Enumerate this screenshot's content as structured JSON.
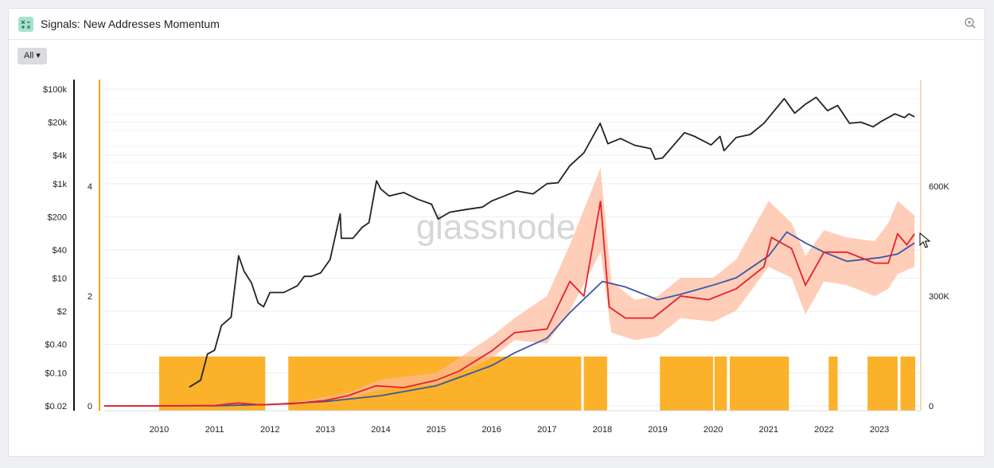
{
  "header": {
    "title": "Signals: New Addresses Momentum",
    "range_button": "All ▾",
    "icons": {
      "title_icon": "signals-icon",
      "zoom_icon": "zoom-in-icon"
    }
  },
  "watermark": "glassnode",
  "colors": {
    "price": "#222222",
    "short_ma": "#e8202a",
    "long_ma": "#3b57a8",
    "raw_band": "#ffb99a",
    "signal": "#fbb12a",
    "left_axis_accent": "#f0a500",
    "right_axis_accent": "#ffd6b8"
  },
  "chart_data": {
    "type": "line",
    "title": "Signals: New Addresses Momentum",
    "x_ticks": [
      "2010",
      "2011",
      "2012",
      "2013",
      "2014",
      "2015",
      "2016",
      "2017",
      "2018",
      "2019",
      "2020",
      "2021",
      "2022",
      "2023"
    ],
    "xlim": [
      "2009-01-03",
      "2023-09-01"
    ],
    "axes": {
      "price": {
        "scale": "log",
        "ticks": [
          "$0.02",
          "$0.10",
          "$0.40",
          "$2",
          "$10",
          "$40",
          "$200",
          "$1k",
          "$4k",
          "$20k",
          "$100k"
        ],
        "tick_values": [
          0.02,
          0.1,
          0.4,
          2,
          10,
          40,
          200,
          1000,
          4000,
          20000,
          100000
        ]
      },
      "signal": {
        "ticks": [
          "0",
          "2",
          "4"
        ],
        "tick_values": [
          0,
          2,
          4
        ],
        "ylim": [
          0,
          6
        ]
      },
      "addresses": {
        "ticks": [
          "0",
          "300K",
          "600K"
        ],
        "tick_values": [
          0,
          300000,
          600000
        ],
        "ylim": [
          0,
          900000
        ]
      }
    },
    "grid": true,
    "signal_periods": [
      [
        "2010-01-01",
        "2011-12-01"
      ],
      [
        "2012-05-01",
        "2017-08-15"
      ],
      [
        "2017-09-01",
        "2018-02-01"
      ],
      [
        "2019-01-15",
        "2020-01-01"
      ],
      [
        "2020-01-10",
        "2020-04-01"
      ],
      [
        "2020-04-20",
        "2021-05-15"
      ],
      [
        "2022-02-01",
        "2022-04-01"
      ],
      [
        "2022-10-15",
        "2023-05-01"
      ],
      [
        "2023-05-20",
        "2023-08-25"
      ]
    ],
    "series": [
      {
        "name": "",
        "axis": "price",
        "points": [
          [
            "2010-07-18",
            0.05
          ],
          [
            "2010-10-01",
            0.07
          ],
          [
            "2010-11-15",
            0.25
          ],
          [
            "2011-01-01",
            0.3
          ],
          [
            "2011-02-15",
            1.0
          ],
          [
            "2011-04-20",
            1.5
          ],
          [
            "2011-06-08",
            30
          ],
          [
            "2011-07-15",
            14
          ],
          [
            "2011-09-01",
            8
          ],
          [
            "2011-10-15",
            3
          ],
          [
            "2011-11-20",
            2.5
          ],
          [
            "2012-01-01",
            5
          ],
          [
            "2012-04-01",
            5
          ],
          [
            "2012-07-01",
            7
          ],
          [
            "2012-08-15",
            11
          ],
          [
            "2012-10-01",
            11
          ],
          [
            "2012-12-01",
            13
          ],
          [
            "2013-02-01",
            25
          ],
          [
            "2013-04-09",
            230
          ],
          [
            "2013-04-16",
            70
          ],
          [
            "2013-07-01",
            70
          ],
          [
            "2013-09-01",
            120
          ],
          [
            "2013-10-15",
            150
          ],
          [
            "2013-12-04",
            1150
          ],
          [
            "2014-01-01",
            770
          ],
          [
            "2014-02-25",
            550
          ],
          [
            "2014-06-01",
            650
          ],
          [
            "2014-09-01",
            470
          ],
          [
            "2014-12-01",
            370
          ],
          [
            "2015-01-14",
            180
          ],
          [
            "2015-04-01",
            250
          ],
          [
            "2015-07-01",
            280
          ],
          [
            "2015-11-01",
            320
          ],
          [
            "2016-01-01",
            430
          ],
          [
            "2016-06-15",
            700
          ],
          [
            "2016-10-01",
            610
          ],
          [
            "2017-01-01",
            1000
          ],
          [
            "2017-03-15",
            1050
          ],
          [
            "2017-06-01",
            2400
          ],
          [
            "2017-09-01",
            4500
          ],
          [
            "2017-12-17",
            19000
          ],
          [
            "2018-02-06",
            7000
          ],
          [
            "2018-05-01",
            9000
          ],
          [
            "2018-08-01",
            6500
          ],
          [
            "2018-11-15",
            5500
          ],
          [
            "2018-12-15",
            3300
          ],
          [
            "2019-02-01",
            3500
          ],
          [
            "2019-06-26",
            12000
          ],
          [
            "2019-09-01",
            10000
          ],
          [
            "2019-12-18",
            6600
          ],
          [
            "2020-02-15",
            10000
          ],
          [
            "2020-03-13",
            5000
          ],
          [
            "2020-06-01",
            9500
          ],
          [
            "2020-09-01",
            11000
          ],
          [
            "2020-12-01",
            19000
          ],
          [
            "2021-04-14",
            63000
          ],
          [
            "2021-06-22",
            31000
          ],
          [
            "2021-09-01",
            48000
          ],
          [
            "2021-11-10",
            67000
          ],
          [
            "2022-01-24",
            35000
          ],
          [
            "2022-04-01",
            45000
          ],
          [
            "2022-06-18",
            19000
          ],
          [
            "2022-09-01",
            20000
          ],
          [
            "2022-11-21",
            16000
          ],
          [
            "2023-01-15",
            21000
          ],
          [
            "2023-04-14",
            30000
          ],
          [
            "2023-06-15",
            25000
          ],
          [
            "2023-07-15",
            30000
          ],
          [
            "2023-08-20",
            26000
          ]
        ]
      },
      {
        "name": "",
        "axis": "addresses",
        "points": [
          [
            "2009-01-03",
            0
          ],
          [
            "2010-01-01",
            0
          ],
          [
            "2011-01-01",
            1000
          ],
          [
            "2011-06-01",
            8000
          ],
          [
            "2011-11-01",
            3000
          ],
          [
            "2012-06-01",
            6000
          ],
          [
            "2013-01-01",
            15000
          ],
          [
            "2013-06-01",
            28000
          ],
          [
            "2013-12-01",
            55000
          ],
          [
            "2014-06-01",
            50000
          ],
          [
            "2015-01-01",
            70000
          ],
          [
            "2015-06-01",
            95000
          ],
          [
            "2016-01-01",
            150000
          ],
          [
            "2016-06-01",
            200000
          ],
          [
            "2017-01-01",
            210000
          ],
          [
            "2017-06-01",
            340000
          ],
          [
            "2017-09-01",
            300000
          ],
          [
            "2017-12-20",
            560000
          ],
          [
            "2018-02-15",
            270000
          ],
          [
            "2018-06-01",
            240000
          ],
          [
            "2018-12-01",
            240000
          ],
          [
            "2019-06-01",
            300000
          ],
          [
            "2019-12-01",
            290000
          ],
          [
            "2020-06-01",
            320000
          ],
          [
            "2020-12-01",
            380000
          ],
          [
            "2021-01-20",
            460000
          ],
          [
            "2021-06-01",
            430000
          ],
          [
            "2021-09-01",
            330000
          ],
          [
            "2022-01-01",
            420000
          ],
          [
            "2022-06-01",
            420000
          ],
          [
            "2022-12-01",
            390000
          ],
          [
            "2023-03-01",
            390000
          ],
          [
            "2023-05-01",
            470000
          ],
          [
            "2023-07-01",
            440000
          ],
          [
            "2023-08-20",
            470000
          ]
        ]
      },
      {
        "name": "",
        "axis": "addresses",
        "points": [
          [
            "2009-01-03",
            0
          ],
          [
            "2011-01-01",
            500
          ],
          [
            "2012-01-01",
            4000
          ],
          [
            "2013-01-01",
            12000
          ],
          [
            "2014-01-01",
            28000
          ],
          [
            "2015-01-01",
            55000
          ],
          [
            "2016-01-01",
            110000
          ],
          [
            "2016-06-01",
            145000
          ],
          [
            "2017-01-01",
            185000
          ],
          [
            "2017-06-01",
            255000
          ],
          [
            "2018-01-01",
            340000
          ],
          [
            "2018-06-01",
            325000
          ],
          [
            "2019-01-01",
            290000
          ],
          [
            "2019-06-01",
            305000
          ],
          [
            "2020-01-01",
            330000
          ],
          [
            "2020-06-01",
            350000
          ],
          [
            "2021-01-01",
            410000
          ],
          [
            "2021-05-01",
            475000
          ],
          [
            "2021-09-01",
            445000
          ],
          [
            "2022-01-01",
            420000
          ],
          [
            "2022-06-01",
            395000
          ],
          [
            "2023-01-01",
            405000
          ],
          [
            "2023-05-01",
            415000
          ],
          [
            "2023-08-20",
            445000
          ]
        ]
      },
      {
        "name": "",
        "axis": "addresses",
        "type": "area-band",
        "points": [
          [
            "2012-06-01",
            5000,
            9000
          ],
          [
            "2013-06-01",
            22000,
            36000
          ],
          [
            "2014-01-01",
            45000,
            72000
          ],
          [
            "2015-01-01",
            60000,
            90000
          ],
          [
            "2016-01-01",
            130000,
            190000
          ],
          [
            "2016-06-01",
            180000,
            240000
          ],
          [
            "2017-01-01",
            170000,
            300000
          ],
          [
            "2017-06-01",
            260000,
            440000
          ],
          [
            "2017-12-20",
            420000,
            650000
          ],
          [
            "2018-03-01",
            200000,
            340000
          ],
          [
            "2018-08-01",
            180000,
            290000
          ],
          [
            "2019-01-01",
            190000,
            300000
          ],
          [
            "2019-06-01",
            240000,
            350000
          ],
          [
            "2020-01-01",
            230000,
            350000
          ],
          [
            "2020-06-01",
            260000,
            400000
          ],
          [
            "2021-01-01",
            380000,
            560000
          ],
          [
            "2021-06-01",
            350000,
            500000
          ],
          [
            "2021-09-01",
            250000,
            410000
          ],
          [
            "2022-01-01",
            340000,
            480000
          ],
          [
            "2022-06-01",
            330000,
            460000
          ],
          [
            "2022-12-01",
            300000,
            450000
          ],
          [
            "2023-03-01",
            320000,
            500000
          ],
          [
            "2023-05-01",
            360000,
            560000
          ],
          [
            "2023-08-20",
            380000,
            520000
          ]
        ]
      }
    ]
  }
}
